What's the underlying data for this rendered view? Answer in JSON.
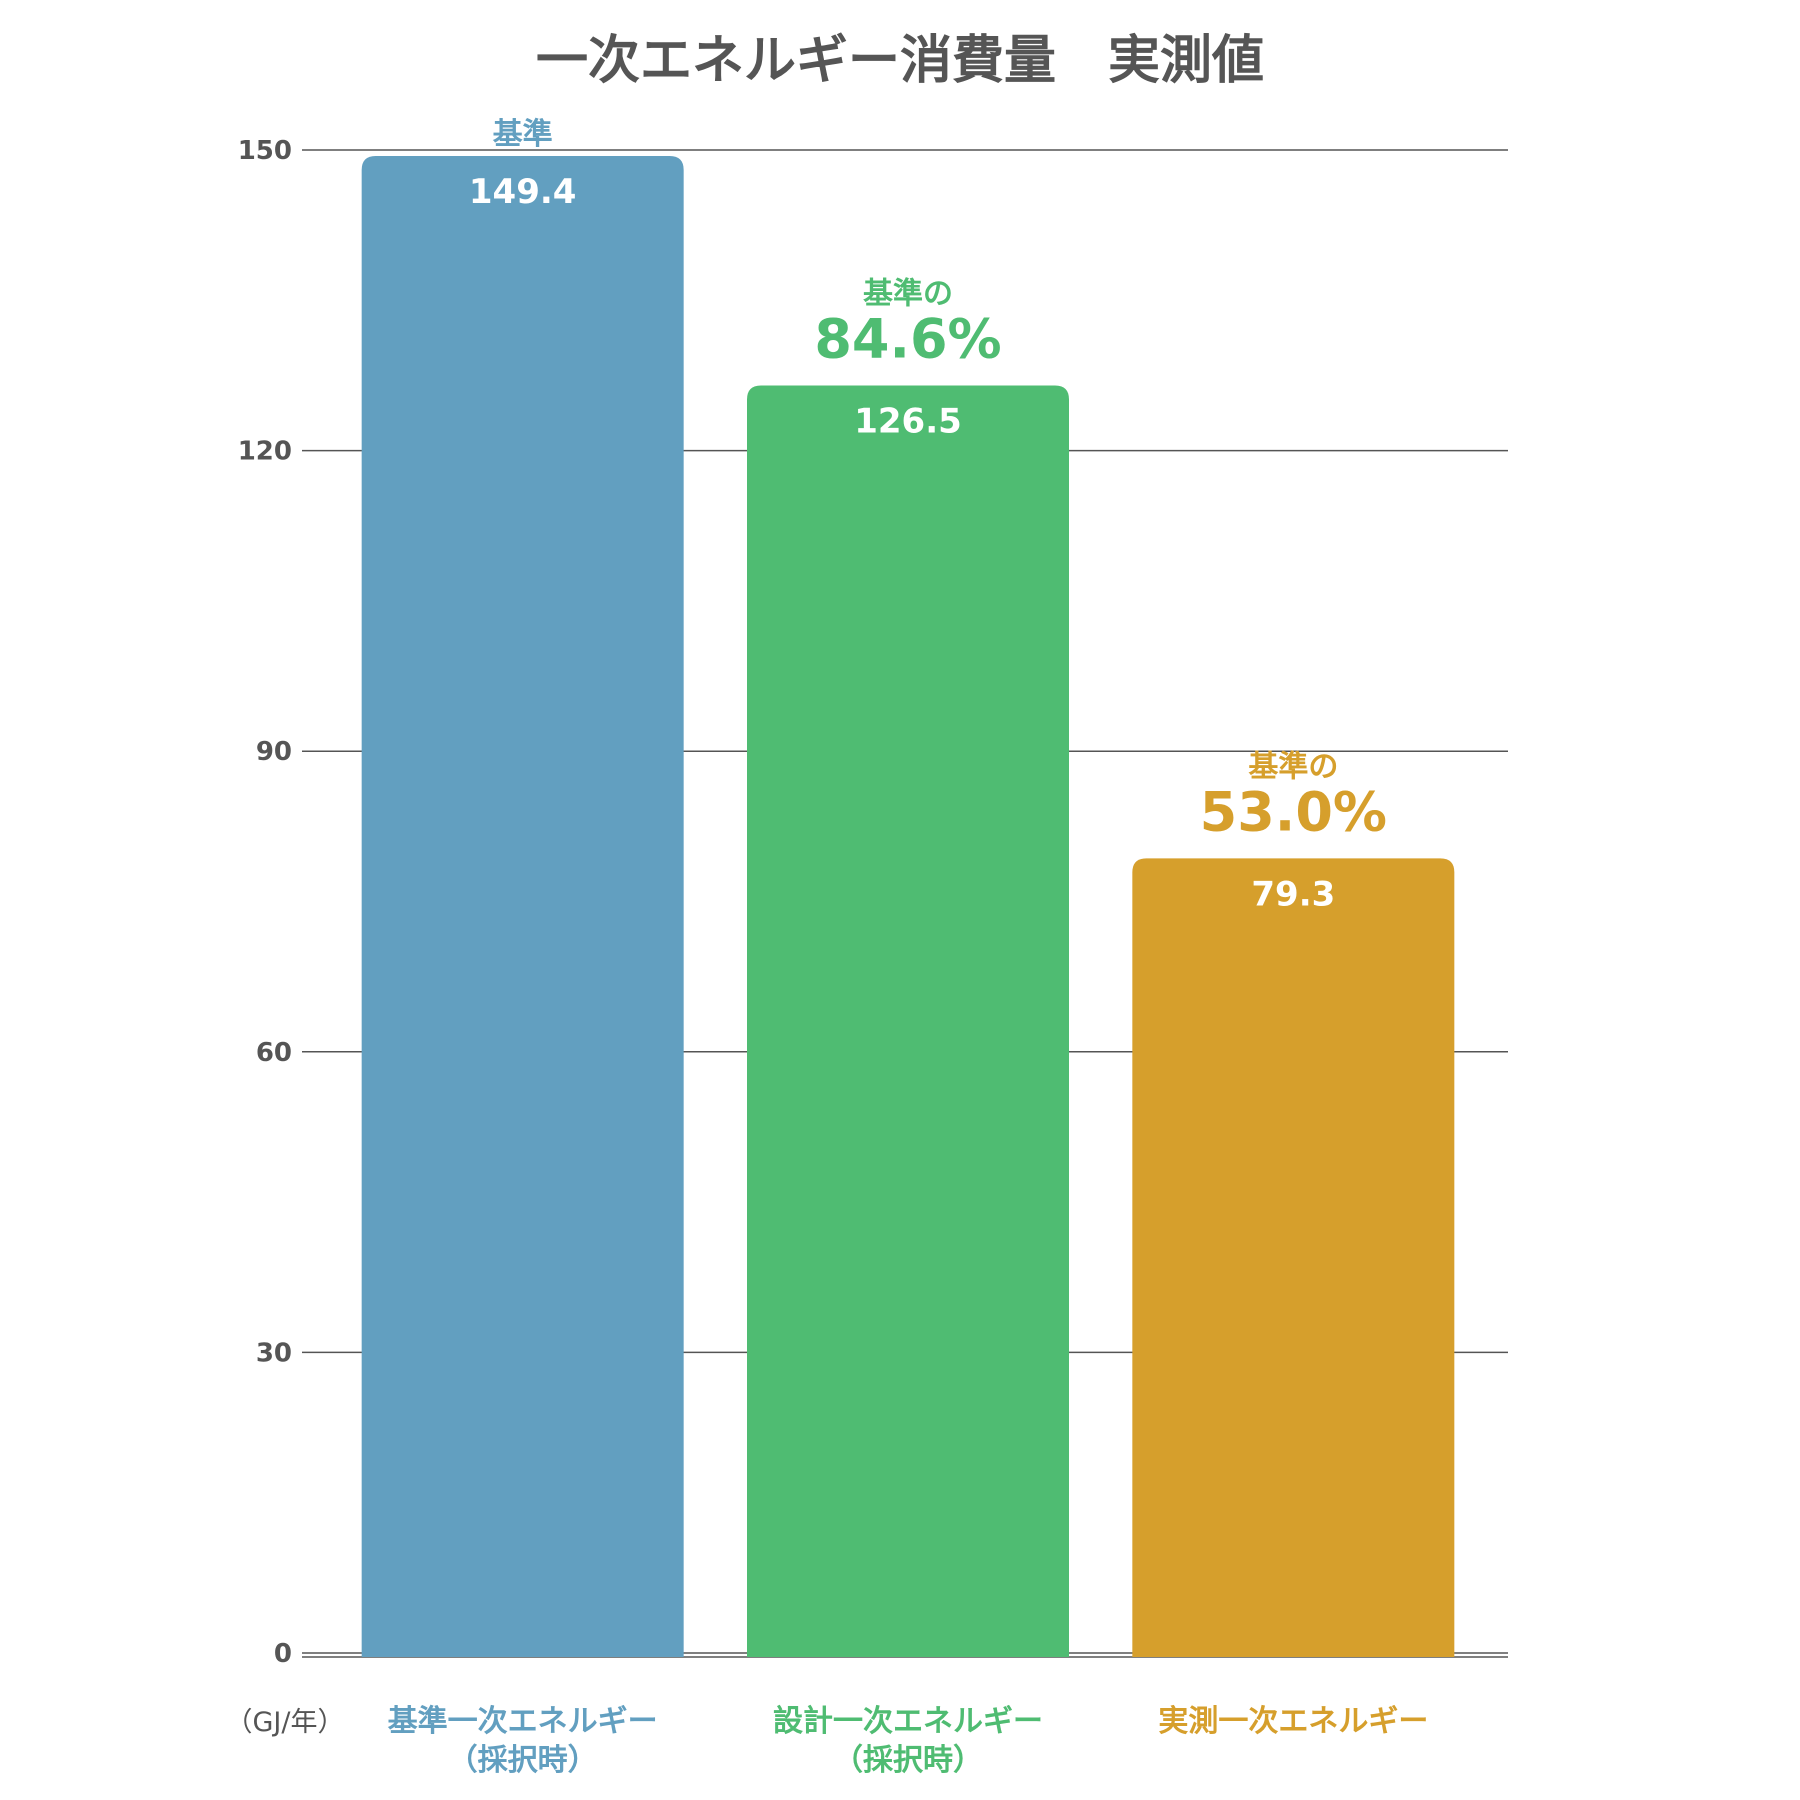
{
  "chart_data": {
    "type": "bar",
    "title": "一次エネルギー消費量　実測値",
    "unit_label": "（GJ/年）",
    "ylim": [
      0,
      150
    ],
    "yticks": [
      0,
      30,
      60,
      90,
      120,
      150
    ],
    "grid": true,
    "categories": [
      [
        "基準一次エネルギー",
        "（採択時）"
      ],
      [
        "設計一次エネルギー",
        "（採択時）"
      ],
      [
        "実測一次エネルギー"
      ]
    ],
    "values": [
      149.4,
      126.5,
      79.3
    ],
    "value_labels": [
      "149.4",
      "126.5",
      "79.3"
    ],
    "annotations": [
      {
        "label": "基準",
        "percent": ""
      },
      {
        "label": "基準の",
        "percent": "84.6%"
      },
      {
        "label": "基準の",
        "percent": "53.0%"
      }
    ],
    "colors": [
      "#629fc0",
      "#4fbc72",
      "#d69f2c"
    ]
  }
}
